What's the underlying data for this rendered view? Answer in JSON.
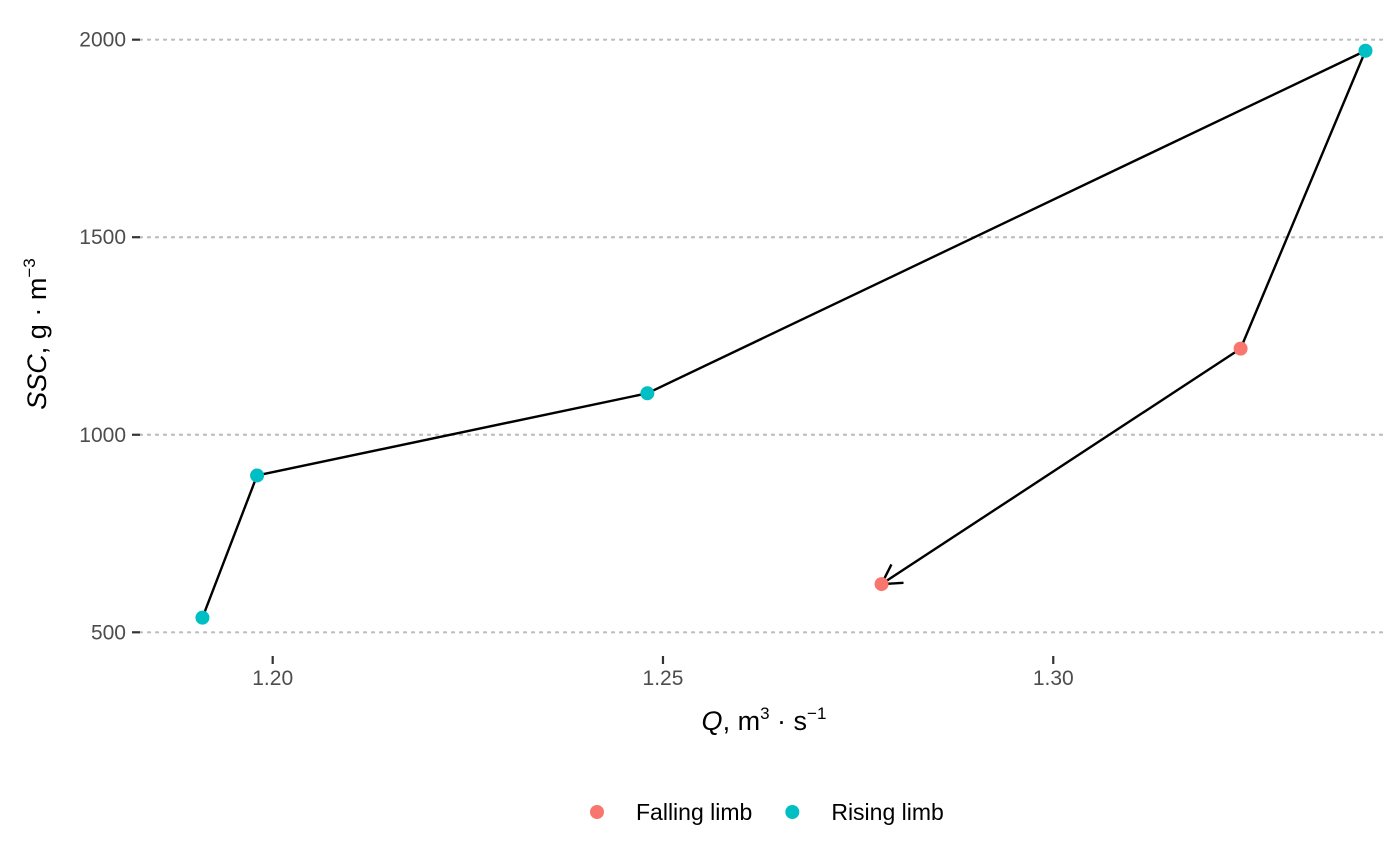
{
  "chart_data": {
    "type": "scatter",
    "title": "",
    "xlabel": {
      "symbol": "Q",
      "unit": "m",
      "unit_exp": "3",
      "rest": "s",
      "rest_exp": "−1"
    },
    "ylabel": {
      "symbol": "SSC",
      "unit": "g",
      "rest": "m",
      "rest_exp": "−3"
    },
    "xlim": [
      1.183,
      1.3425
    ],
    "ylim": [
      440,
      2065
    ],
    "x_ticks": [
      1.2,
      1.25,
      1.3
    ],
    "x_tick_labels": [
      "1.20",
      "1.25",
      "1.30"
    ],
    "y_ticks": [
      500,
      1000,
      1500,
      2000
    ],
    "y_tick_labels": [
      "500",
      "1000",
      "1500",
      "2000"
    ],
    "grid": {
      "horizontal": true,
      "vertical": false,
      "style": "dotted"
    },
    "legend_position": "bottom",
    "connect_points": true,
    "end_arrow": true,
    "series": [
      {
        "name": "Falling limb",
        "color": "#F8766D"
      },
      {
        "name": "Rising limb",
        "color": "#00BFC4"
      }
    ],
    "points": [
      {
        "x": 1.191,
        "y": 537,
        "series": "Rising limb"
      },
      {
        "x": 1.198,
        "y": 897,
        "series": "Rising limb"
      },
      {
        "x": 1.248,
        "y": 1105,
        "series": "Rising limb"
      },
      {
        "x": 1.34,
        "y": 1972,
        "series": "Rising limb"
      },
      {
        "x": 1.324,
        "y": 1218,
        "series": "Falling limb"
      },
      {
        "x": 1.278,
        "y": 622,
        "series": "Falling limb"
      }
    ]
  }
}
